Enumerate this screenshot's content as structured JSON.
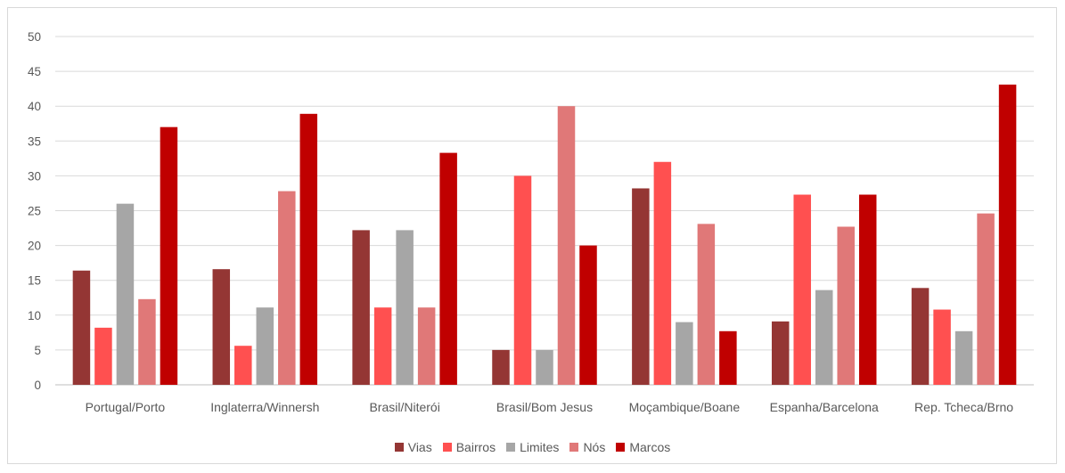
{
  "chart_data": {
    "type": "bar",
    "categories": [
      "Portugal/Porto",
      "Inglaterra/Winnersh",
      "Brasil/Niterói",
      "Brasil/Bom Jesus",
      "Moçambique/Boane",
      "Espanha/Barcelona",
      "Rep. Tcheca/Brno"
    ],
    "series": [
      {
        "name": "Vias",
        "color": "#943634",
        "values": [
          16.4,
          16.6,
          22.2,
          5.0,
          28.2,
          9.1,
          13.9
        ]
      },
      {
        "name": "Bairros",
        "color": "#ff5050",
        "values": [
          8.2,
          5.6,
          11.1,
          30.0,
          32.0,
          27.3,
          10.8
        ]
      },
      {
        "name": "Limites",
        "color": "#a6a6a6",
        "values": [
          26.0,
          11.1,
          22.2,
          5.0,
          9.0,
          13.6,
          7.7
        ]
      },
      {
        "name": "Nós",
        "color": "#e07878",
        "values": [
          12.3,
          27.8,
          11.1,
          40.0,
          23.1,
          22.7,
          24.6
        ]
      },
      {
        "name": "Marcos",
        "color": "#c00000",
        "values": [
          37.0,
          38.9,
          33.3,
          20.0,
          7.7,
          27.3,
          43.1
        ]
      }
    ],
    "y_ticks": [
      "0",
      "5",
      "10",
      "15",
      "20",
      "25",
      "30",
      "35",
      "40",
      "45",
      "50"
    ],
    "ylim": [
      0,
      50
    ],
    "grid": true,
    "legend_position": "bottom"
  }
}
